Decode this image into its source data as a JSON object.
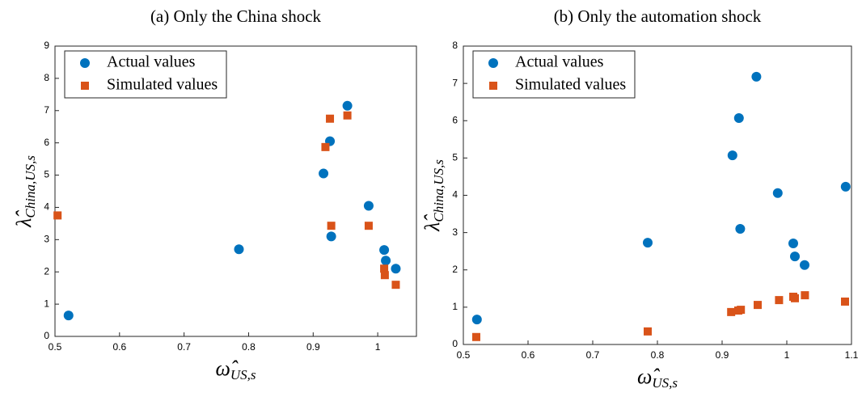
{
  "chart_data": [
    {
      "type": "scatter",
      "title": "(a) Only the China shock",
      "xlabel": "ω̂",
      "xlabel_subscript": "US,s",
      "ylabel": "λ̂",
      "ylabel_subscript": "China,US,s",
      "xlim": [
        0.5,
        1.06
      ],
      "ylim": [
        0,
        9
      ],
      "xticks": [
        0.5,
        0.6,
        0.7,
        0.8,
        0.9,
        1
      ],
      "yticks": [
        0,
        1,
        2,
        3,
        4,
        5,
        6,
        7,
        8,
        9
      ],
      "legend": "upper left",
      "series": [
        {
          "name": "Actual values",
          "color": "#0072bd",
          "marker": "circle",
          "x": [
            0.521,
            0.785,
            0.916,
            0.926,
            0.928,
            0.953,
            0.986,
            1.01,
            1.0125,
            1.028
          ],
          "values": [
            0.65,
            2.7,
            5.05,
            6.05,
            3.1,
            7.15,
            4.05,
            2.68,
            2.35,
            2.1
          ]
        },
        {
          "name": "Simulated values",
          "color": "#d95319",
          "marker": "square",
          "x": [
            0.504,
            0.919,
            0.926,
            0.928,
            0.953,
            0.986,
            1.01,
            1.011,
            1.028
          ],
          "values": [
            3.75,
            5.87,
            6.75,
            3.43,
            6.85,
            3.43,
            2.1,
            1.9,
            1.6
          ]
        }
      ]
    },
    {
      "type": "scatter",
      "title": "(b) Only the automation shock",
      "xlabel": "ω̂",
      "xlabel_subscript": "US,s",
      "ylabel": "λ̂",
      "ylabel_subscript": "China,US,s",
      "xlim": [
        0.5,
        1.1
      ],
      "ylim": [
        0,
        8
      ],
      "xticks": [
        0.5,
        0.6,
        0.7,
        0.8,
        0.9,
        1,
        1.1
      ],
      "yticks": [
        0,
        1,
        2,
        3,
        4,
        5,
        6,
        7,
        8
      ],
      "legend": "upper left",
      "series": [
        {
          "name": "Actual values",
          "color": "#0072bd",
          "marker": "circle",
          "x": [
            0.521,
            0.785,
            0.916,
            0.926,
            0.928,
            0.953,
            0.986,
            1.01,
            1.0125,
            1.0275,
            1.091
          ],
          "values": [
            0.67,
            2.73,
            5.07,
            6.07,
            3.1,
            7.18,
            4.06,
            2.71,
            2.36,
            2.13,
            4.23
          ]
        },
        {
          "name": "Simulated values",
          "color": "#d95319",
          "marker": "square",
          "x": [
            0.52,
            0.785,
            0.914,
            0.925,
            0.929,
            0.955,
            0.988,
            1.01,
            1.0125,
            1.028,
            1.09
          ],
          "values": [
            0.2,
            0.35,
            0.87,
            0.91,
            0.93,
            1.06,
            1.19,
            1.28,
            1.24,
            1.32,
            1.15
          ]
        }
      ]
    }
  ]
}
